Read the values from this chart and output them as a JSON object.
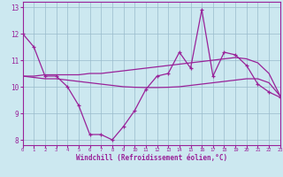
{
  "x": [
    0,
    1,
    2,
    3,
    4,
    5,
    6,
    7,
    8,
    9,
    10,
    11,
    12,
    13,
    14,
    15,
    16,
    17,
    18,
    19,
    20,
    21,
    22,
    23
  ],
  "y_main": [
    12.0,
    11.5,
    10.4,
    10.4,
    10.0,
    9.3,
    8.2,
    8.2,
    8.0,
    8.5,
    9.1,
    9.9,
    10.4,
    10.5,
    11.3,
    10.7,
    12.9,
    10.4,
    11.3,
    11.2,
    10.8,
    10.1,
    9.8,
    9.6
  ],
  "y_smooth1": [
    10.4,
    10.4,
    10.45,
    10.45,
    10.45,
    10.45,
    10.5,
    10.5,
    10.55,
    10.6,
    10.65,
    10.7,
    10.75,
    10.8,
    10.85,
    10.9,
    10.95,
    11.0,
    11.05,
    11.1,
    11.05,
    10.9,
    10.5,
    9.65
  ],
  "y_smooth2": [
    10.4,
    10.35,
    10.3,
    10.3,
    10.25,
    10.2,
    10.15,
    10.1,
    10.05,
    10.0,
    9.98,
    9.97,
    9.97,
    9.98,
    10.0,
    10.05,
    10.1,
    10.15,
    10.2,
    10.25,
    10.3,
    10.3,
    10.15,
    9.65
  ],
  "line_color": "#992299",
  "bg_color": "#cce8f0",
  "grid_color": "#99bbcc",
  "xlabel": "Windchill (Refroidissement éolien,°C)",
  "xlim": [
    0,
    23
  ],
  "ylim": [
    7.8,
    13.2
  ],
  "yticks": [
    8,
    9,
    10,
    11,
    12,
    13
  ],
  "xticks": [
    0,
    1,
    2,
    3,
    4,
    5,
    6,
    7,
    8,
    9,
    10,
    11,
    12,
    13,
    14,
    15,
    16,
    17,
    18,
    19,
    20,
    21,
    22,
    23
  ]
}
